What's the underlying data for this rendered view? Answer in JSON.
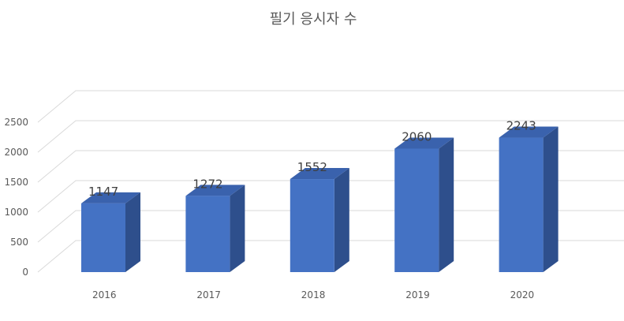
{
  "chart_data": {
    "type": "bar",
    "style": "3d-column",
    "title": "필기 응시자 수",
    "categories": [
      "2016",
      "2017",
      "2018",
      "2019",
      "2020"
    ],
    "values": [
      1147,
      1272,
      1552,
      2060,
      2243
    ],
    "ylim": [
      0,
      2500
    ],
    "yticks": [
      0,
      500,
      1000,
      1500,
      2000,
      2500
    ],
    "grid": true,
    "legend": "none",
    "data_labels": true,
    "colors": {
      "front": "#4472c4",
      "side": "#2e4f8c",
      "top": "#3a62ad",
      "grid": "#d9d9d9",
      "text": "#595959"
    }
  }
}
